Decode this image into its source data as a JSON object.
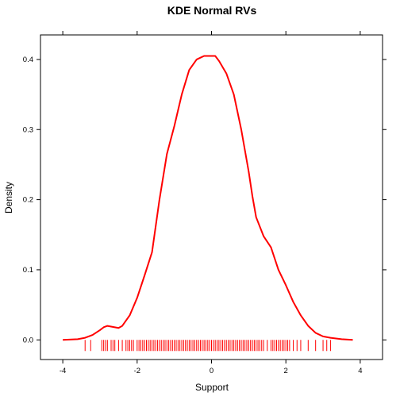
{
  "chart_data": {
    "type": "line",
    "title": "KDE Normal RVs",
    "xlabel": "Support",
    "ylabel": "Density",
    "xlim": [
      -4.6,
      4.6
    ],
    "ylim": [
      -0.028,
      0.435
    ],
    "xticks": [
      -4,
      -2,
      0,
      2,
      4
    ],
    "yticks": [
      0.0,
      0.1,
      0.2,
      0.3,
      0.4
    ],
    "xtick_labels": [
      "-4",
      "-2",
      "0",
      "2",
      "4"
    ],
    "ytick_labels": [
      "0.0",
      "0.1",
      "0.2",
      "0.3",
      "0.4"
    ],
    "line_color": "#ff0000",
    "series": [
      {
        "x": [
          -4.0,
          -3.6,
          -3.4,
          -3.2,
          -3.0,
          -2.9,
          -2.8,
          -2.6,
          -2.5,
          -2.4,
          -2.2,
          -2.0,
          -1.8,
          -1.6,
          -1.4,
          -1.2,
          -1.0,
          -0.8,
          -0.6,
          -0.4,
          -0.2,
          0.0,
          0.1,
          0.2,
          0.4,
          0.6,
          0.8,
          1.0,
          1.1,
          1.2,
          1.4,
          1.6,
          1.8,
          2.0,
          2.2,
          2.4,
          2.6,
          2.8,
          3.0,
          3.2,
          3.5,
          3.8
        ],
        "y": [
          0.0,
          0.001,
          0.003,
          0.007,
          0.014,
          0.018,
          0.02,
          0.018,
          0.017,
          0.02,
          0.035,
          0.06,
          0.092,
          0.125,
          0.2,
          0.265,
          0.305,
          0.35,
          0.385,
          0.4,
          0.405,
          0.405,
          0.405,
          0.398,
          0.38,
          0.35,
          0.3,
          0.24,
          0.205,
          0.175,
          0.148,
          0.132,
          0.1,
          0.078,
          0.054,
          0.035,
          0.02,
          0.01,
          0.005,
          0.003,
          0.001,
          0.0
        ]
      }
    ],
    "rug": [
      -3.4,
      -3.25,
      -2.95,
      -2.9,
      -2.85,
      -2.8,
      -2.7,
      -2.65,
      -2.6,
      -2.5,
      -2.4,
      -2.3,
      -2.25,
      -2.2,
      -2.15,
      -2.1,
      -2.0,
      -1.95,
      -1.9,
      -1.85,
      -1.8,
      -1.75,
      -1.7,
      -1.65,
      -1.6,
      -1.55,
      -1.5,
      -1.45,
      -1.4,
      -1.35,
      -1.3,
      -1.25,
      -1.2,
      -1.15,
      -1.1,
      -1.05,
      -1.0,
      -0.95,
      -0.9,
      -0.85,
      -0.8,
      -0.75,
      -0.7,
      -0.65,
      -0.6,
      -0.55,
      -0.5,
      -0.45,
      -0.4,
      -0.35,
      -0.3,
      -0.25,
      -0.2,
      -0.15,
      -0.1,
      -0.05,
      0.0,
      0.05,
      0.1,
      0.15,
      0.2,
      0.25,
      0.3,
      0.35,
      0.4,
      0.45,
      0.5,
      0.55,
      0.6,
      0.65,
      0.7,
      0.75,
      0.8,
      0.85,
      0.9,
      0.95,
      1.0,
      1.05,
      1.1,
      1.15,
      1.2,
      1.25,
      1.3,
      1.35,
      1.4,
      1.5,
      1.6,
      1.65,
      1.7,
      1.75,
      1.8,
      1.85,
      1.9,
      1.95,
      2.0,
      2.05,
      2.1,
      2.2,
      2.3,
      2.4,
      2.6,
      2.8,
      3.0,
      3.1,
      3.2
    ]
  }
}
